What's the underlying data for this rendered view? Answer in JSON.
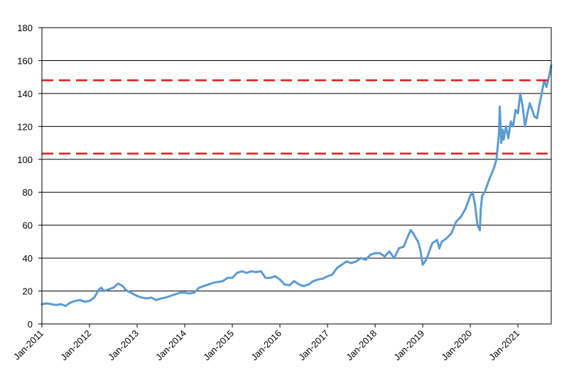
{
  "chart_data": {
    "type": "line",
    "title": "",
    "xlabel": "",
    "ylabel": "",
    "ylim": [
      0,
      180
    ],
    "yticks": [
      0,
      20,
      40,
      60,
      80,
      100,
      120,
      140,
      160,
      180
    ],
    "x_tick_labels": [
      "Jan-2011",
      "Jan-2012",
      "Jan-2013",
      "Jan-2014",
      "Jan-2015",
      "Jan-2016",
      "Jan-2017",
      "Jan-2018",
      "Jan-2019",
      "Jan-2020",
      "Jan-2021"
    ],
    "x_range": [
      2011.0,
      2021.7
    ],
    "grid": "horizontal",
    "legend": "none",
    "colors": {
      "series": "#5b9bd5",
      "reference": "#e01b1b",
      "grid": "#000000"
    },
    "reference_lines": [
      {
        "y": 148,
        "style": "dashed"
      },
      {
        "y": 103.5,
        "style": "dashed"
      }
    ],
    "series": [
      {
        "x": [
          2011.0,
          2011.1,
          2011.2,
          2011.3,
          2011.4,
          2011.5,
          2011.6,
          2011.7,
          2011.8,
          2011.9,
          2012.0,
          2012.1,
          2012.2,
          2012.25,
          2012.3,
          2012.4,
          2012.5,
          2012.6,
          2012.7,
          2012.75,
          2012.8,
          2012.9,
          2013.0,
          2013.1,
          2013.2,
          2013.3,
          2013.4,
          2013.5,
          2013.6,
          2013.7,
          2013.8,
          2013.9,
          2014.0,
          2014.1,
          2014.2,
          2014.3,
          2014.4,
          2014.5,
          2014.6,
          2014.7,
          2014.8,
          2014.9,
          2015.0,
          2015.1,
          2015.2,
          2015.3,
          2015.4,
          2015.5,
          2015.6,
          2015.65,
          2015.7,
          2015.8,
          2015.9,
          2016.0,
          2016.1,
          2016.2,
          2016.3,
          2016.4,
          2016.5,
          2016.6,
          2016.7,
          2016.8,
          2016.9,
          2017.0,
          2017.1,
          2017.2,
          2017.3,
          2017.4,
          2017.5,
          2017.6,
          2017.7,
          2017.8,
          2017.9,
          2018.0,
          2018.1,
          2018.2,
          2018.3,
          2018.4,
          2018.5,
          2018.6,
          2018.7,
          2018.75,
          2018.8,
          2018.9,
          2018.95,
          2019.0,
          2019.05,
          2019.1,
          2019.2,
          2019.3,
          2019.35,
          2019.4,
          2019.5,
          2019.6,
          2019.7,
          2019.8,
          2019.9,
          2020.0,
          2020.05,
          2020.1,
          2020.15,
          2020.2,
          2020.22,
          2020.25,
          2020.3,
          2020.4,
          2020.5,
          2020.55,
          2020.6,
          2020.62,
          2020.65,
          2020.68,
          2020.7,
          2020.75,
          2020.8,
          2020.85,
          2020.9,
          2020.95,
          2021.0,
          2021.05,
          2021.1,
          2021.15,
          2021.2,
          2021.25,
          2021.3,
          2021.35,
          2021.4,
          2021.45,
          2021.5,
          2021.55,
          2021.6,
          2021.65,
          2021.7
        ],
        "y": [
          12,
          12.5,
          12,
          11.5,
          12,
          11,
          13,
          14,
          14.5,
          13.5,
          14,
          16,
          21,
          22,
          20,
          21,
          22,
          24.5,
          23,
          21,
          20,
          18.5,
          17,
          16,
          15.5,
          16,
          14.5,
          15.5,
          16,
          17,
          18,
          19,
          19,
          18.5,
          19,
          22,
          23,
          24,
          25,
          25.5,
          26,
          28,
          28,
          31,
          32,
          31,
          32,
          31.5,
          32,
          30,
          28,
          28,
          29,
          27,
          24,
          23.5,
          26,
          24,
          23,
          24,
          26,
          27,
          27.5,
          29,
          30,
          34,
          36,
          38,
          37,
          38,
          40,
          39,
          42,
          43,
          43,
          41,
          44,
          40,
          46,
          47,
          54,
          57,
          55,
          50,
          45,
          36,
          38,
          41,
          49,
          51,
          46,
          50,
          52,
          55,
          62,
          65,
          70,
          78,
          80,
          72,
          60,
          57,
          70,
          78,
          80,
          88,
          95,
          100,
          115,
          132,
          110,
          118,
          112,
          120,
          113,
          123,
          120,
          130,
          128,
          140,
          132,
          120,
          128,
          134,
          130,
          126,
          125,
          133,
          140,
          148,
          144,
          150,
          157
        ]
      }
    ]
  }
}
